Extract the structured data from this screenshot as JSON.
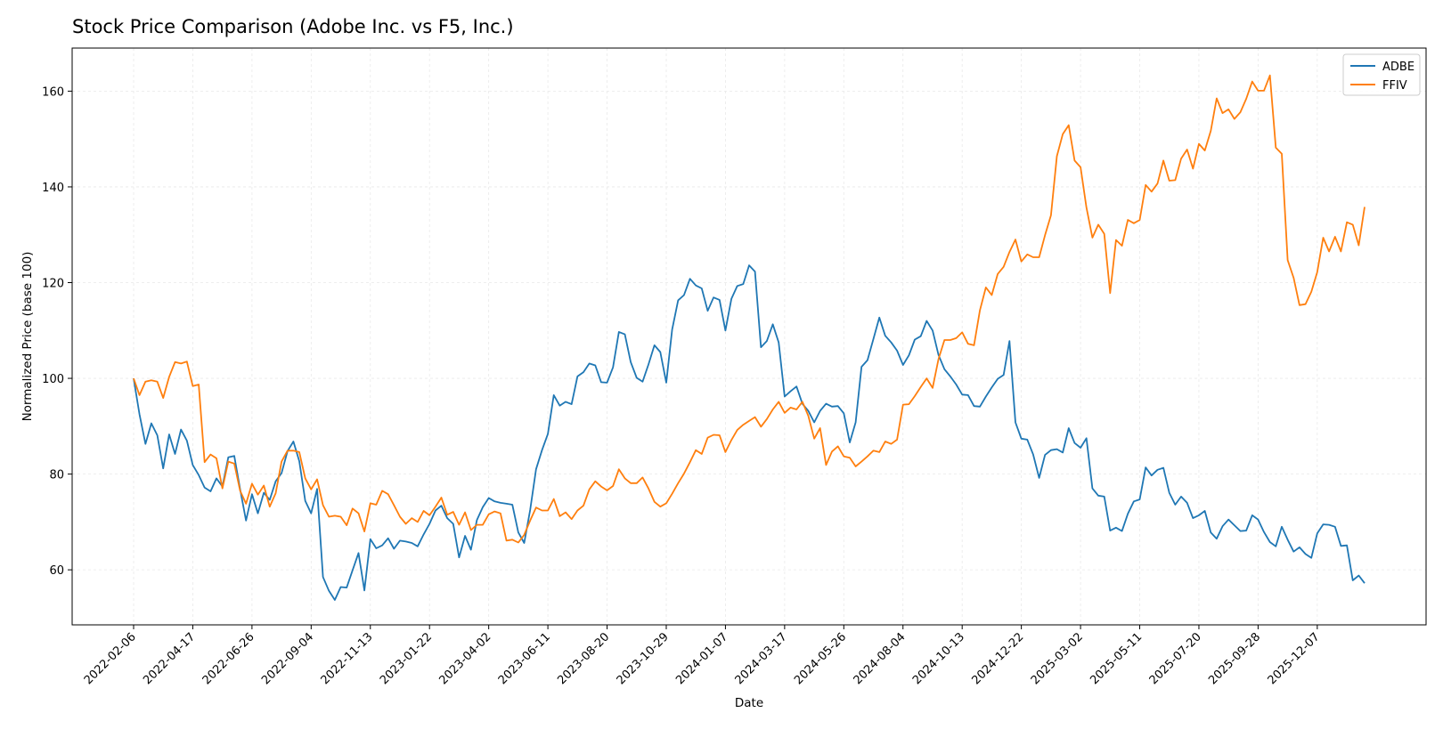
{
  "chart_data": {
    "type": "line",
    "title": "Stock Price Comparison (Adobe Inc. vs F5, Inc.)",
    "xlabel": "Date",
    "ylabel": "Normalized Price (base 100)",
    "x_tick_labels": [
      "2022-02-06",
      "2022-04-17",
      "2022-06-26",
      "2022-09-04",
      "2022-11-13",
      "2023-01-22",
      "2023-04-02",
      "2023-06-11",
      "2023-08-20",
      "2023-10-29",
      "2024-01-07",
      "2024-03-17",
      "2024-05-26",
      "2024-08-04",
      "2024-10-13",
      "2024-12-22",
      "2025-03-02",
      "2025-05-11",
      "2025-07-20",
      "2025-09-28",
      "2025-12-07"
    ],
    "y_ticks": [
      60,
      80,
      100,
      120,
      140,
      160
    ],
    "ylim": [
      48.5,
      169
    ],
    "x_period_days": 7,
    "x_start": "2022-02-06",
    "grid": true,
    "legend_position": "top-right",
    "series": [
      {
        "name": "ADBE",
        "color": "#1f77b4",
        "values": [
          100,
          92.5,
          86.3,
          90.6,
          88.1,
          81.2,
          88.3,
          84.2,
          89.3,
          87,
          81.9,
          79.8,
          77.2,
          76.4,
          79.1,
          77.4,
          83.5,
          83.8,
          76.8,
          70.3,
          75.8,
          71.8,
          76.1,
          74.6,
          78.5,
          80.2,
          84.8,
          86.8,
          82.7,
          74.4,
          71.8,
          76.9,
          58.5,
          55.6,
          53.7,
          56.4,
          56.3,
          59.9,
          63.5,
          55.7,
          66.4,
          64.5,
          65.1,
          66.6,
          64.4,
          66.1,
          65.9,
          65.6,
          64.9,
          67.4,
          69.6,
          72.4,
          73.4,
          70.8,
          69.6,
          62.6,
          67.1,
          64.2,
          70.4,
          73.1,
          75,
          74.3,
          74,
          73.8,
          73.6,
          67.8,
          65.6,
          72.5,
          81,
          85,
          88.4,
          96.5,
          94.3,
          95.1,
          94.6,
          100.4,
          101.3,
          103.1,
          102.7,
          99.2,
          99.1,
          102.3,
          109.7,
          109.2,
          103.4,
          100.1,
          99.3,
          102.9,
          106.9,
          105.5,
          99.1,
          110.2,
          116.3,
          117.4,
          120.8,
          119.4,
          118.8,
          114.1,
          116.9,
          116.4,
          110,
          116.6,
          119.3,
          119.7,
          123.6,
          122.3,
          106.5,
          107.8,
          111.3,
          107.5,
          96.2,
          97.3,
          98.3,
          94.7,
          93.2,
          90.8,
          93.2,
          94.7,
          94.1,
          94.2,
          92.7,
          86.6,
          90.8,
          102.4,
          103.8,
          108.2,
          112.7,
          108.9,
          107.5,
          105.8,
          102.8,
          104.8,
          108.1,
          108.8,
          112,
          110,
          104.9,
          101.9,
          100.4,
          98.7,
          96.6,
          96.5,
          94.2,
          94.1,
          96.2,
          98.1,
          99.9,
          100.7,
          107.8,
          90.8,
          87.4,
          87.2,
          84.1,
          79.2,
          84,
          85,
          85.2,
          84.5,
          89.6,
          86.5,
          85.5,
          87.5,
          77,
          75.5,
          75.3,
          68.2,
          68.8,
          68.1,
          71.7,
          74.3,
          74.7,
          81.4,
          79.7,
          80.9,
          81.3,
          76.1,
          73.6,
          75.3,
          74,
          70.8,
          71.4,
          72.3,
          67.8,
          66.5,
          69.1,
          70.5,
          69.3,
          68.1,
          68.2,
          71.4,
          70.5,
          67.9,
          65.8,
          64.9,
          69,
          66.3,
          63.8,
          64.7,
          63.3,
          62.5,
          67.6,
          69.5,
          69.4,
          69,
          65,
          65.1,
          57.8,
          58.8,
          57.2
        ]
      },
      {
        "name": "FFIV",
        "color": "#ff7f0e",
        "values": [
          100,
          96.5,
          99.3,
          99.6,
          99.3,
          95.9,
          100.3,
          103.4,
          103.1,
          103.5,
          98.4,
          98.7,
          82.5,
          84.1,
          83.3,
          77,
          82.6,
          82.2,
          76.5,
          73.8,
          78,
          75.7,
          77.6,
          73.2,
          76,
          82.6,
          84.9,
          84.9,
          84.6,
          79.1,
          76.8,
          78.9,
          73.5,
          71.1,
          71.3,
          71.1,
          69.3,
          72.8,
          71.8,
          68,
          73.9,
          73.6,
          76.5,
          75.8,
          73.5,
          71.1,
          69.6,
          70.8,
          70,
          72.3,
          71.4,
          73.2,
          75.1,
          71.5,
          72.1,
          69.4,
          72,
          68.3,
          69.4,
          69.4,
          71.6,
          72.2,
          71.8,
          66.1,
          66.3,
          65.7,
          67.3,
          70.3,
          73,
          72.4,
          72.4,
          74.8,
          71.2,
          72,
          70.6,
          72.4,
          73.4,
          76.8,
          78.5,
          77.4,
          76.6,
          77.5,
          81,
          79.1,
          78.1,
          78.1,
          79.3,
          77,
          74.2,
          73.2,
          73.9,
          75.9,
          78.1,
          80.1,
          82.5,
          85,
          84.2,
          87.6,
          88.2,
          88.1,
          84.6,
          87.1,
          89.2,
          90.3,
          91.1,
          91.9,
          89.9,
          91.5,
          93.5,
          95.1,
          92.8,
          93.9,
          93.5,
          95.1,
          92.2,
          87.4,
          89.6,
          81.9,
          84.7,
          85.8,
          83.7,
          83.4,
          81.6,
          82.6,
          83.7,
          84.9,
          84.6,
          86.8,
          86.3,
          87.2,
          94.5,
          94.6,
          96.3,
          98.2,
          100,
          98,
          104,
          108,
          108,
          108.4,
          109.6,
          107.2,
          106.9,
          114.2,
          119,
          117.4,
          121.8,
          123.3,
          126.4,
          129,
          124.4,
          125.9,
          125.3,
          125.3,
          129.9,
          134.1,
          146.4,
          151,
          152.9,
          145.5,
          144.1,
          135.7,
          129.4,
          132.1,
          130.2,
          117.8,
          128.9,
          127.7,
          133.1,
          132.4,
          133.1,
          140.4,
          139,
          140.7,
          145.5,
          141.3,
          141.4,
          145.9,
          147.8,
          143.8,
          149,
          147.6,
          151.7,
          158.5,
          155.4,
          156.2,
          154.2,
          155.6,
          158.4,
          162,
          160.1,
          160.1,
          163.3,
          148.2,
          146.9,
          124.7,
          121,
          115.3,
          115.5,
          118.1,
          122.2,
          129.4,
          126.5,
          129.6,
          126.5,
          132.6,
          132.1,
          127.8,
          135.8
        ]
      }
    ]
  }
}
